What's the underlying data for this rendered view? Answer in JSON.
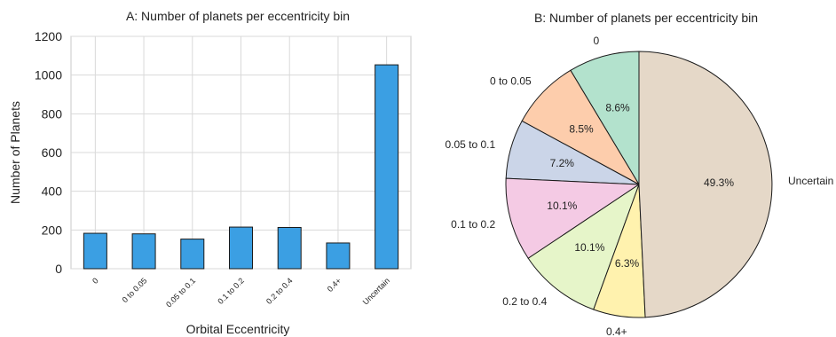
{
  "chart_data": [
    {
      "type": "bar",
      "title": "A: Number of planets per eccentricity bin",
      "xlabel": "Orbital Eccentricity",
      "ylabel": "Number of Planets",
      "categories": [
        "0",
        "0 to 0.05",
        "0.05 to 0.1",
        "0.1 to 0.2",
        "0.2 to 0.4",
        "0.4+",
        "Uncertain"
      ],
      "values": [
        183,
        180,
        153,
        215,
        213,
        133,
        1053
      ],
      "ylim": [
        0,
        1200
      ],
      "yticks": [
        0,
        200,
        400,
        600,
        800,
        1000,
        1200
      ],
      "grid": true,
      "bar_color": "#3b9fe3"
    },
    {
      "type": "pie",
      "title": "B: Number of planets per eccentricity bin",
      "labels": [
        "0",
        "0 to 0.05",
        "0.05 to 0.1",
        "0.1 to 0.2",
        "0.2 to 0.4",
        "0.4+",
        "Uncertain"
      ],
      "values": [
        8.6,
        8.5,
        7.2,
        10.1,
        10.1,
        6.3,
        49.3
      ],
      "value_labels": [
        "8.6%",
        "8.5%",
        "7.2%",
        "10.1%",
        "10.1%",
        "6.3%",
        "49.3%"
      ],
      "colors": [
        "#b3e2cd",
        "#fdcdac",
        "#cbd5e8",
        "#f4cae4",
        "#e6f5c9",
        "#fff2ae",
        "#e5d8c8"
      ]
    }
  ]
}
